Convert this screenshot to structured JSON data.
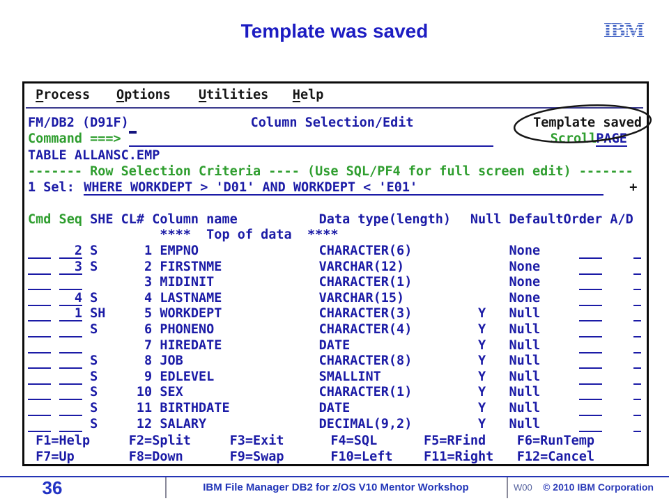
{
  "slide": {
    "title": "Template was saved",
    "logo_text": "IBM"
  },
  "terminal": {
    "menu": [
      "Process",
      "Options",
      "Utilities",
      "Help"
    ],
    "panel_id": "FM/DB2 (D91F)",
    "panel_title": "Column Selection/Edit",
    "message": "Template saved",
    "command_label": "Command ===>",
    "command_value": "",
    "scroll_label": "Scroll",
    "scroll_value": "PAGE",
    "table_line": "TABLE ALLANSC.EMP",
    "criteria_line": "------- Row Selection Criteria ---- (Use SQL/PF4 for full screen edit) -------",
    "sel_label": "1 Sel:",
    "sel_value": "WHERE WORKDEPT > 'D01' AND WORKDEPT < 'E01'",
    "sel_more": "+",
    "header": {
      "cmd_seq": "Cmd Seq",
      "left": "SHE CL# Column name",
      "type": "Data type(length)",
      "null_default": "Null Default",
      "order_ad": "Order A/D"
    },
    "top_of_data": "****  Top of data  ****",
    "rows": [
      {
        "cmd": "",
        "seq": "2",
        "she": "S",
        "num": "1",
        "name": "EMPNO",
        "type": "CHARACTER(6)",
        "nul": "",
        "dft": "None"
      },
      {
        "cmd": "",
        "seq": "3",
        "she": "S",
        "num": "2",
        "name": "FIRSTNME",
        "type": "VARCHAR(12)",
        "nul": "",
        "dft": "None"
      },
      {
        "cmd": "",
        "seq": "",
        "she": "",
        "num": "3",
        "name": "MIDINIT",
        "type": "CHARACTER(1)",
        "nul": "",
        "dft": "None"
      },
      {
        "cmd": "",
        "seq": "4",
        "she": "S",
        "num": "4",
        "name": "LASTNAME",
        "type": "VARCHAR(15)",
        "nul": "",
        "dft": "None"
      },
      {
        "cmd": "",
        "seq": "1",
        "she": "SH",
        "num": "5",
        "name": "WORKDEPT",
        "type": "CHARACTER(3)",
        "nul": "Y",
        "dft": "Null"
      },
      {
        "cmd": "",
        "seq": "",
        "she": "S",
        "num": "6",
        "name": "PHONENO",
        "type": "CHARACTER(4)",
        "nul": "Y",
        "dft": "Null"
      },
      {
        "cmd": "",
        "seq": "",
        "she": "",
        "num": "7",
        "name": "HIREDATE",
        "type": "DATE",
        "nul": "Y",
        "dft": "Null"
      },
      {
        "cmd": "",
        "seq": "",
        "she": "S",
        "num": "8",
        "name": "JOB",
        "type": "CHARACTER(8)",
        "nul": "Y",
        "dft": "Null"
      },
      {
        "cmd": "",
        "seq": "",
        "she": "S",
        "num": "9",
        "name": "EDLEVEL",
        "type": "SMALLINT",
        "nul": "Y",
        "dft": "Null"
      },
      {
        "cmd": "",
        "seq": "",
        "she": "S",
        "num": "10",
        "name": "SEX",
        "type": "CHARACTER(1)",
        "nul": "Y",
        "dft": "Null"
      },
      {
        "cmd": "",
        "seq": "",
        "she": "S",
        "num": "11",
        "name": "BIRTHDATE",
        "type": "DATE",
        "nul": "Y",
        "dft": "Null"
      },
      {
        "cmd": "",
        "seq": "",
        "she": "S",
        "num": "12",
        "name": "SALARY",
        "type": "DECIMAL(9,2)",
        "nul": "Y",
        "dft": "Null"
      }
    ],
    "fkeys_row1": [
      "F1=Help",
      "F2=Split",
      "F3=Exit",
      "F4=SQL",
      "F5=RFind",
      "F6=RunTemp"
    ],
    "fkeys_row2": [
      "F7=Up",
      "F8=Down",
      "F9=Swap",
      "F10=Left",
      "F11=Right",
      "F12=Cancel"
    ]
  },
  "footer": {
    "page": "36",
    "title": "IBM File Manager DB2 for z/OS V10 Mentor Workshop",
    "code": "W00",
    "copyright": "© 2010 IBM Corporation"
  },
  "colors": {
    "terminal_blue": "#1b1ba6",
    "terminal_green": "#2f9e2f",
    "terminal_black": "#151515",
    "slide_title_blue": "#1c1cc2",
    "footer_blue": "#2236b8",
    "logo_blue": "#4565c5",
    "annotation_black": "#161616"
  }
}
